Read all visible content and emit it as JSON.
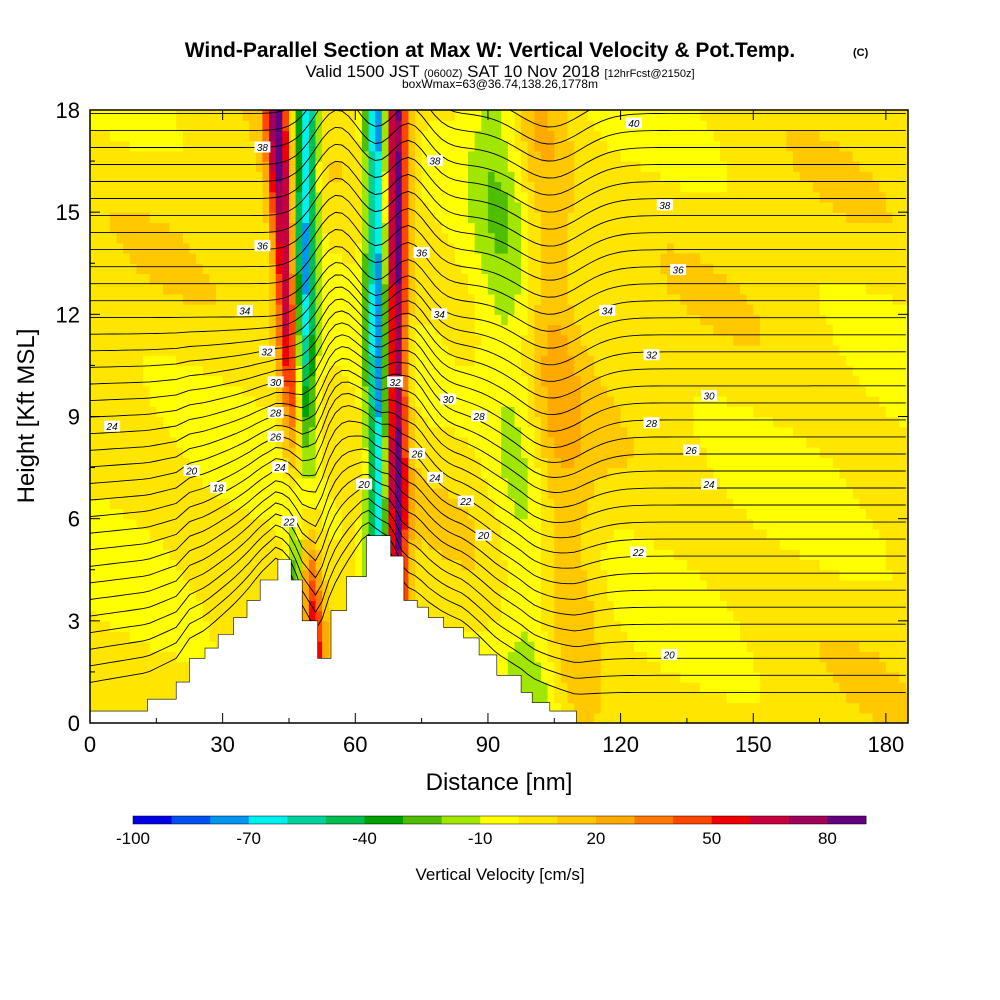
{
  "title": {
    "main": "Wind-Parallel Section at Max W: Vertical Velocity & Pot.Temp.",
    "copyright": "(C)",
    "valid_a": "Valid 1500 JST",
    "valid_b": "(0600Z)",
    "valid_c": "SAT 10 Nov 2018",
    "valid_d": "[12hrFcst@2150z]",
    "subtitle": "boxWmax=63@36.74,138.26,1778m"
  },
  "colors": {
    "terrain": "#ffffff",
    "contour": "#000000",
    "bins": [
      "#0000e6",
      "#0050f0",
      "#0096f0",
      "#00f0f0",
      "#00d29b",
      "#00be50",
      "#00a000",
      "#50be00",
      "#a0e600",
      "#ffff00",
      "#ffe600",
      "#ffc800",
      "#ffaa00",
      "#ff7800",
      "#ff4600",
      "#f00000",
      "#c8003c",
      "#a0005a",
      "#640082"
    ]
  },
  "chart_data": {
    "type": "heatmap",
    "xlabel": "Distance [nm]",
    "ylabel": "Height [Kft MSL]",
    "xlim": [
      0,
      185
    ],
    "ylim": [
      0,
      18
    ],
    "xticks": [
      "0",
      "30",
      "60",
      "90",
      "120",
      "150",
      "180"
    ],
    "yticks": [
      "0",
      "3",
      "6",
      "9",
      "12",
      "15",
      "18"
    ],
    "colorbar": {
      "label": "Vertical Velocity [cm/s]",
      "tick_labels": [
        "-100",
        "-70",
        "-40",
        "-10",
        "20",
        "50",
        "80"
      ],
      "boundaries": [
        -100,
        -90,
        -80,
        -70,
        -60,
        -50,
        -40,
        -30,
        -20,
        -10,
        0,
        10,
        20,
        30,
        40,
        50,
        60,
        70,
        80,
        90
      ]
    },
    "field": "vertical_velocity_cm_s",
    "field_features": [
      {
        "kind": "updraft",
        "x_base": 51,
        "x_top": 42,
        "peak": 75
      },
      {
        "kind": "downdraft",
        "x_base": 47,
        "x_top": 49,
        "peak": -75
      },
      {
        "kind": "downdraft",
        "x_base": 66,
        "x_top": 65,
        "peak": -85
      },
      {
        "kind": "updraft",
        "x_base": 69,
        "x_top": 69,
        "peak": 90
      },
      {
        "kind": "updraft",
        "x_base": 108,
        "x_top": 100,
        "peak": 25
      },
      {
        "kind": "downdraft",
        "x_base": 103,
        "x_top": 93,
        "peak": -25
      }
    ],
    "terrain_kft": {
      "x": [
        0,
        13,
        19.5,
        22.5,
        26,
        29,
        32.5,
        35.5,
        38.5,
        42.5,
        45.5,
        48,
        51.5,
        54.5,
        58,
        62.5,
        68,
        71,
        74,
        76.5,
        80,
        84.5,
        88,
        92,
        97.5,
        100,
        104,
        110
      ],
      "y": [
        0.35,
        0.7,
        1.2,
        1.9,
        2.2,
        2.6,
        3.1,
        3.6,
        4.2,
        4.8,
        4.2,
        3.0,
        1.9,
        3.3,
        4.3,
        5.5,
        4.9,
        3.6,
        3.4,
        3.1,
        2.8,
        2.5,
        2.0,
        1.4,
        0.9,
        0.6,
        0.35,
        0.0
      ]
    },
    "isentropes_K": [
      18,
      20,
      22,
      24,
      26,
      28,
      30,
      32,
      34,
      36,
      38,
      40
    ],
    "contour_labels": [
      {
        "text": "24",
        "x": 5,
        "y": 8.7
      },
      {
        "text": "20",
        "x": 23,
        "y": 7.4
      },
      {
        "text": "18",
        "x": 29,
        "y": 6.9
      },
      {
        "text": "22",
        "x": 45,
        "y": 5.9
      },
      {
        "text": "24",
        "x": 43,
        "y": 7.5
      },
      {
        "text": "26",
        "x": 42,
        "y": 8.4
      },
      {
        "text": "28",
        "x": 42,
        "y": 9.1
      },
      {
        "text": "30",
        "x": 42,
        "y": 10.0
      },
      {
        "text": "32",
        "x": 40,
        "y": 10.9
      },
      {
        "text": "34",
        "x": 35,
        "y": 12.1
      },
      {
        "text": "36",
        "x": 39,
        "y": 14.0
      },
      {
        "text": "38",
        "x": 39,
        "y": 16.9
      },
      {
        "text": "20",
        "x": 62,
        "y": 7.0
      },
      {
        "text": "32",
        "x": 69,
        "y": 10.0
      },
      {
        "text": "26",
        "x": 74,
        "y": 7.9
      },
      {
        "text": "24",
        "x": 78,
        "y": 7.2
      },
      {
        "text": "22",
        "x": 85,
        "y": 6.5
      },
      {
        "text": "20",
        "x": 89,
        "y": 5.5
      },
      {
        "text": "28",
        "x": 88,
        "y": 9.0
      },
      {
        "text": "30",
        "x": 81,
        "y": 9.5
      },
      {
        "text": "34",
        "x": 79,
        "y": 12.0
      },
      {
        "text": "36",
        "x": 75,
        "y": 13.8
      },
      {
        "text": "38",
        "x": 78,
        "y": 16.5
      },
      {
        "text": "40",
        "x": 123,
        "y": 17.6
      },
      {
        "text": "38",
        "x": 130,
        "y": 15.2
      },
      {
        "text": "36",
        "x": 133,
        "y": 13.3
      },
      {
        "text": "34",
        "x": 117,
        "y": 12.1
      },
      {
        "text": "32",
        "x": 127,
        "y": 10.8
      },
      {
        "text": "30",
        "x": 140,
        "y": 9.6
      },
      {
        "text": "28",
        "x": 127,
        "y": 8.8
      },
      {
        "text": "26",
        "x": 136,
        "y": 8.0
      },
      {
        "text": "24",
        "x": 140,
        "y": 7.0
      },
      {
        "text": "22",
        "x": 124,
        "y": 5.0
      },
      {
        "text": "20",
        "x": 131,
        "y": 2.0
      }
    ]
  }
}
